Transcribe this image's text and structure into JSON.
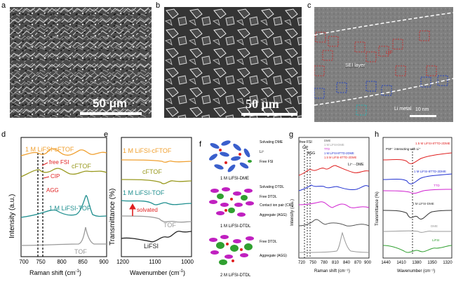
{
  "panels": {
    "a": {
      "label": "a",
      "scalebar": "50 μm"
    },
    "b": {
      "label": "b",
      "scalebar": "50 μm"
    },
    "c": {
      "label": "c",
      "sei": "SEI layer",
      "li": "Li metal",
      "lif": "LiF",
      "scalebar": "10 nm"
    },
    "d": {
      "label": "d",
      "ylabel": "Intensity (a.u.)",
      "xlabel": "Raman shift (cm",
      "xlabel_sup": "-1",
      "xlabel_end": ")",
      "xticks": [
        "700",
        "750",
        "800",
        "850",
        "900"
      ],
      "traces": [
        "1 M LiFSI-cFTOF",
        "cFTOF",
        "1 M LiFSI-TOF",
        "TOF"
      ],
      "annot": [
        "free FSI",
        "CIP",
        "AGG"
      ]
    },
    "e": {
      "label": "e",
      "ylabel": "Transmittance (%)",
      "xlabel": "Wavenumber (cm",
      "xlabel_sup": "-1",
      "xlabel_end": ")",
      "xticks": [
        "1200",
        "1100",
        "1000"
      ],
      "traces": [
        "1 M LiFSI-cFTOF",
        "cFTOF",
        "1 M LiFSI-TOF",
        "TOF",
        "LiFSI"
      ],
      "annot": "solvated"
    },
    "f": {
      "label": "f",
      "group1": "1 M LiFSI-DME",
      "group2": "1 M LiFSI-DTDL",
      "group3": "2 M LiFSI-DTDL",
      "legend1": [
        "Solvating DME",
        "Li⁺",
        "Free FSI"
      ],
      "legend2": [
        "Solvating DTDL",
        "Free DTDL",
        "Contact ion pair (CIP)",
        "Aggregate (AGG)"
      ],
      "legend3": [
        "Free DTDL",
        "Aggregate (AGG)"
      ]
    },
    "g": {
      "label": "g",
      "ylabel": "Intensity (a.u.)",
      "xlabel": "Raman shift (cm⁻¹)",
      "xticks": [
        "720",
        "750",
        "780",
        "810",
        "840",
        "870",
        "900"
      ],
      "legend": [
        "DME",
        "1 M LiFSI-DME",
        "TTD",
        "1 M LiFSI-8TTD-2DME",
        "1.5 M LiFSI-8TTD-2DME"
      ],
      "annot": [
        "free FSI",
        "CIP",
        "AGG",
        "Li⁺···DME"
      ]
    },
    "h": {
      "label": "h",
      "ylabel": "Transmittance (%)",
      "xlabel": "Wavenumber (cm⁻¹)",
      "xticks": [
        "1440",
        "1410",
        "1380",
        "1350",
        "1320"
      ],
      "traces": [
        "1.5 M LiFSI-8TTD-2DME",
        "1 M LiFSI-8TTD-2DME",
        "TTD",
        "1 M LiFSI-DME",
        "DME",
        "LiFSI"
      ],
      "annot": "PSF⁻ interacting with Li⁺"
    }
  },
  "colors": {
    "orange": "#f0a030",
    "olive": "#9a9a20",
    "teal": "#1f8f8f",
    "gray": "#9a9a9a",
    "black": "#222222",
    "red": "#e02020",
    "blue": "#2030d0",
    "magenta": "#d020d0",
    "green": "#30a030"
  }
}
